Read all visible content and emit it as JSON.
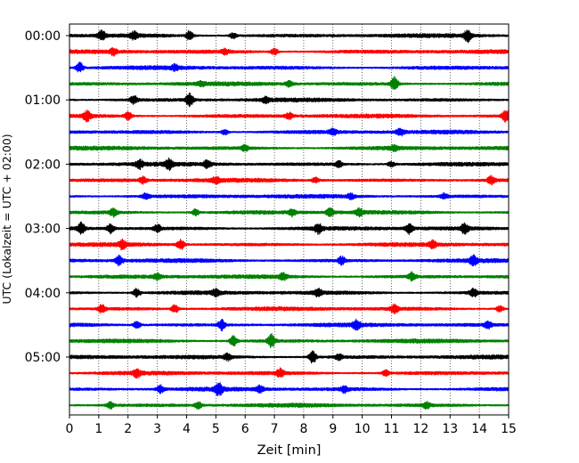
{
  "chart_data": {
    "type": "line",
    "subtype": "helicorder",
    "title": "",
    "xlabel": "Zeit  [min]",
    "ylabel": "UTC (Lokalzeit = UTC + 02:00)",
    "xlim": [
      0,
      15
    ],
    "x_ticks": [
      "0",
      "1",
      "2",
      "3",
      "4",
      "5",
      "6",
      "7",
      "8",
      "9",
      "10",
      "11",
      "12",
      "13",
      "14",
      "15"
    ],
    "y_ticks": [
      {
        "label": "00:00",
        "row": 0
      },
      {
        "label": "01:00",
        "row": 4
      },
      {
        "label": "02:00",
        "row": 8
      },
      {
        "label": "03:00",
        "row": 12
      },
      {
        "label": "04:00",
        "row": 16
      },
      {
        "label": "05:00",
        "row": 20
      }
    ],
    "rows": 24,
    "minutes_per_row": 15,
    "vertical_grid": "dotted",
    "trace_colors": [
      "#000000",
      "#ff0000",
      "#0000ff",
      "#008000"
    ],
    "series": [
      {
        "row": 0,
        "color": "#000000",
        "events": [
          [
            1.1,
            0.7
          ],
          [
            2.2,
            0.5
          ],
          [
            4.1,
            0.7
          ],
          [
            5.6,
            0.45
          ],
          [
            13.6,
            0.9
          ]
        ]
      },
      {
        "row": 1,
        "color": "#ff0000",
        "events": [
          [
            1.5,
            0.5
          ],
          [
            5.3,
            0.35
          ],
          [
            7.0,
            0.5
          ]
        ]
      },
      {
        "row": 2,
        "color": "#0000ff",
        "events": [
          [
            0.35,
            0.8
          ],
          [
            3.6,
            0.4
          ]
        ]
      },
      {
        "row": 3,
        "color": "#008000",
        "events": [
          [
            4.5,
            0.3
          ],
          [
            7.5,
            0.4
          ],
          [
            11.1,
            1.0
          ]
        ]
      },
      {
        "row": 4,
        "color": "#000000",
        "events": [
          [
            2.2,
            0.6
          ],
          [
            4.1,
            1.0
          ],
          [
            6.7,
            0.4
          ]
        ]
      },
      {
        "row": 5,
        "color": "#ff0000",
        "events": [
          [
            0.6,
            0.8
          ],
          [
            2.0,
            0.6
          ],
          [
            7.5,
            0.45
          ],
          [
            14.9,
            0.9
          ]
        ]
      },
      {
        "row": 6,
        "color": "#0000ff",
        "events": [
          [
            5.3,
            0.4
          ],
          [
            9.0,
            0.5
          ],
          [
            11.3,
            0.5
          ]
        ]
      },
      {
        "row": 7,
        "color": "#008000",
        "events": [
          [
            6.0,
            0.45
          ],
          [
            11.1,
            0.35
          ]
        ]
      },
      {
        "row": 8,
        "color": "#000000",
        "events": [
          [
            2.4,
            0.6
          ],
          [
            3.4,
            0.7
          ],
          [
            4.7,
            0.6
          ],
          [
            9.2,
            0.5
          ],
          [
            11.0,
            0.4
          ]
        ]
      },
      {
        "row": 9,
        "color": "#ff0000",
        "events": [
          [
            2.5,
            0.5
          ],
          [
            5.0,
            0.45
          ],
          [
            8.4,
            0.4
          ],
          [
            14.4,
            0.6
          ]
        ]
      },
      {
        "row": 10,
        "color": "#0000ff",
        "events": [
          [
            2.6,
            0.45
          ],
          [
            9.6,
            0.4
          ],
          [
            12.8,
            0.4
          ]
        ]
      },
      {
        "row": 11,
        "color": "#008000",
        "events": [
          [
            1.5,
            0.6
          ],
          [
            4.3,
            0.5
          ],
          [
            7.6,
            0.5
          ],
          [
            8.9,
            0.6
          ],
          [
            9.9,
            0.55
          ]
        ]
      },
      {
        "row": 12,
        "color": "#000000",
        "events": [
          [
            0.4,
            0.8
          ],
          [
            1.4,
            0.7
          ],
          [
            3.0,
            0.6
          ],
          [
            8.5,
            0.7
          ],
          [
            11.6,
            0.8
          ],
          [
            13.5,
            0.7
          ]
        ]
      },
      {
        "row": 13,
        "color": "#ff0000",
        "events": [
          [
            1.8,
            0.6
          ],
          [
            3.8,
            0.8
          ],
          [
            12.4,
            0.5
          ]
        ]
      },
      {
        "row": 14,
        "color": "#0000ff",
        "events": [
          [
            1.7,
            0.7
          ],
          [
            9.3,
            0.6
          ],
          [
            13.8,
            0.7
          ]
        ]
      },
      {
        "row": 15,
        "color": "#008000",
        "events": [
          [
            3.0,
            0.4
          ],
          [
            7.3,
            0.5
          ],
          [
            11.7,
            0.6
          ]
        ]
      },
      {
        "row": 16,
        "color": "#000000",
        "events": [
          [
            2.3,
            0.65
          ],
          [
            5.0,
            0.5
          ],
          [
            8.5,
            0.5
          ],
          [
            13.8,
            0.6
          ]
        ]
      },
      {
        "row": 17,
        "color": "#ff0000",
        "events": [
          [
            1.1,
            0.6
          ],
          [
            3.6,
            0.6
          ],
          [
            11.1,
            0.6
          ],
          [
            14.7,
            0.5
          ]
        ]
      },
      {
        "row": 18,
        "color": "#0000ff",
        "events": [
          [
            2.3,
            0.55
          ],
          [
            5.2,
            0.8
          ],
          [
            9.8,
            0.6
          ],
          [
            14.3,
            0.5
          ]
        ]
      },
      {
        "row": 19,
        "color": "#008000",
        "events": [
          [
            5.6,
            0.8
          ],
          [
            6.9,
            1.0
          ]
        ]
      },
      {
        "row": 20,
        "color": "#000000",
        "events": [
          [
            5.4,
            0.5
          ],
          [
            8.3,
            1.0
          ],
          [
            9.2,
            0.45
          ]
        ]
      },
      {
        "row": 21,
        "color": "#ff0000",
        "events": [
          [
            2.3,
            0.55
          ],
          [
            7.2,
            0.6
          ],
          [
            10.8,
            0.5
          ]
        ]
      },
      {
        "row": 22,
        "color": "#0000ff",
        "events": [
          [
            3.1,
            0.6
          ],
          [
            5.1,
            1.0
          ],
          [
            6.5,
            0.5
          ],
          [
            9.4,
            0.5
          ]
        ]
      },
      {
        "row": 23,
        "color": "#008000",
        "events": [
          [
            1.4,
            0.55
          ],
          [
            4.4,
            0.5
          ],
          [
            12.2,
            0.45
          ]
        ]
      }
    ]
  }
}
